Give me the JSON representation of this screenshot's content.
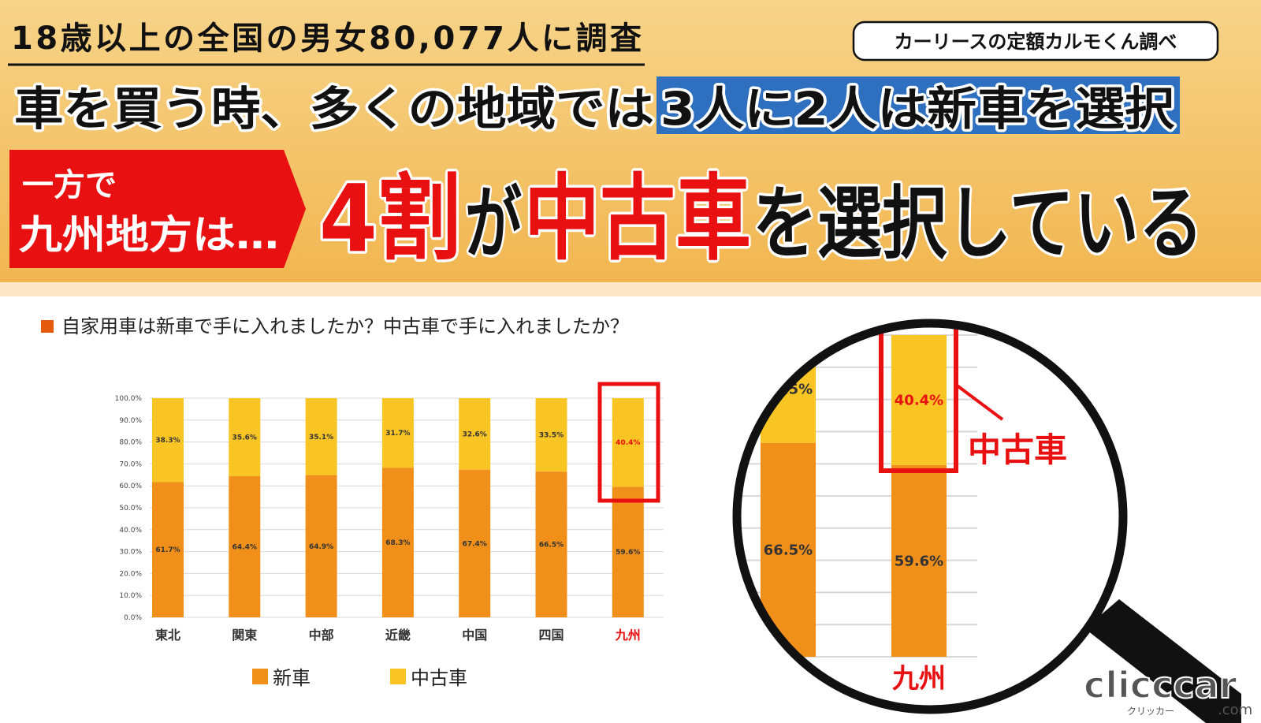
{
  "header": {
    "survey": "18歳以上の全国の男女80,077人に調査",
    "source": "カーリースの定額カルモくん調べ",
    "headline_a": "車を買う時、多くの地域では",
    "headline_b": "3人に2人は新車を選択",
    "badge_1": "一方で",
    "badge_2": "九州地方は…",
    "big_1": "4割",
    "big_2": "が",
    "big_3": "中古車",
    "big_4": "を選択している"
  },
  "logo": {
    "main": "clicccar",
    "sub": "クリッカー",
    "domain": ".com"
  },
  "chart_data": {
    "type": "stacked_bar",
    "title": "自家用車は新車で手に入れましたか？中古車で手に入れましたか？",
    "categories": [
      "東北",
      "関東",
      "中部",
      "近畿",
      "中国",
      "四国",
      "九州"
    ],
    "series": [
      {
        "name": "新車",
        "color": "#f0901a",
        "values": [
          61.7,
          64.4,
          64.9,
          68.3,
          67.4,
          66.5,
          59.6
        ],
        "value_labels": [
          "61.7%",
          "64.4%",
          "64.9%",
          "68.3%",
          "67.4%",
          "66.5%",
          "59.6%"
        ]
      },
      {
        "name": "中古車",
        "color": "#f8c525",
        "values": [
          38.3,
          35.6,
          35.1,
          31.7,
          32.6,
          33.5,
          40.4
        ],
        "value_labels": [
          "38.3%",
          "35.6%",
          "35.1%",
          "31.7%",
          "32.6%",
          "33.5%",
          "40.4%"
        ]
      }
    ],
    "ylim": [
      0,
      100
    ],
    "yticks": [
      {
        "value": 0,
        "label": "0.0%"
      },
      {
        "value": 10,
        "label": "10.0%"
      },
      {
        "value": 20,
        "label": "20.0%"
      },
      {
        "value": 30,
        "label": "30.0%"
      },
      {
        "value": 40,
        "label": "40.0%"
      },
      {
        "value": 50,
        "label": "50.0%"
      },
      {
        "value": 60,
        "label": "60.0%"
      },
      {
        "value": 70,
        "label": "70.0%"
      },
      {
        "value": 80,
        "label": "80.0%"
      },
      {
        "value": 90,
        "label": "90.0%"
      },
      {
        "value": 100,
        "label": "100.0%"
      }
    ],
    "grid": true,
    "highlight_color": "#e81010"
  }
}
